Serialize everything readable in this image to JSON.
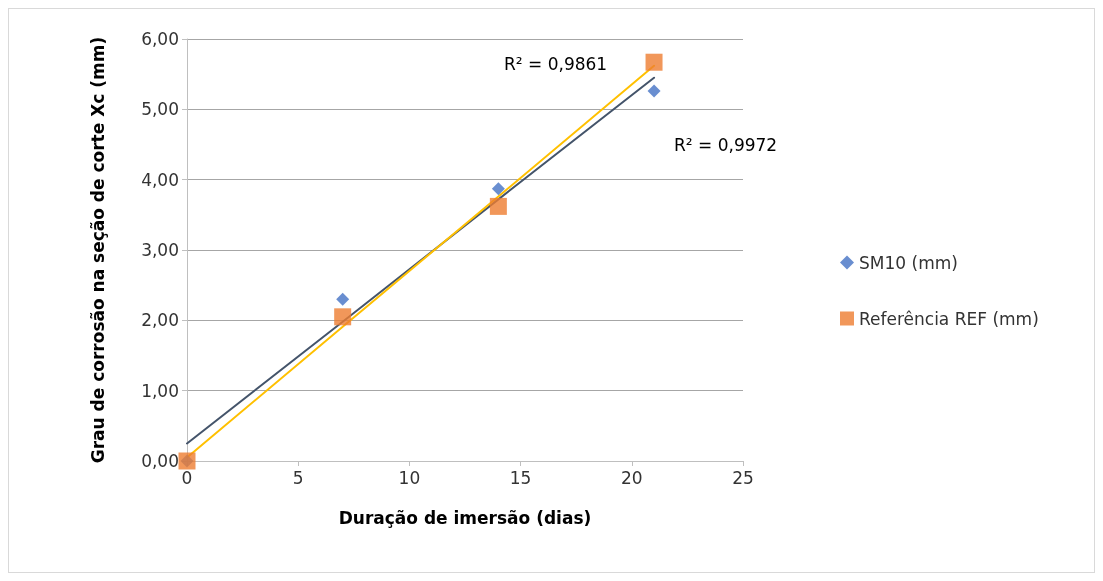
{
  "chart_data": {
    "type": "scatter",
    "xlabel": "Duração de imersão (dias)",
    "ylabel": "Grau de corrosão na seção de corte Xc (mm)",
    "x": [
      0,
      7,
      14,
      21
    ],
    "series": [
      {
        "name": "SM10 (mm)",
        "color": "#4472c4",
        "marker": "diamond",
        "values": [
          0,
          2.3,
          3.87,
          5.26
        ]
      },
      {
        "name": "Referência REF (mm)",
        "color": "#ed7d31",
        "marker": "square",
        "values": [
          0,
          2.05,
          3.62,
          5.67
        ]
      },
      {
        "type": "line",
        "color": "#44546a",
        "marker": "none",
        "values": [
          0.25,
          1.98,
          3.72,
          5.45
        ]
      },
      {
        "type": "line",
        "color": "#ffc000",
        "marker": "none",
        "values": [
          0.05,
          1.91,
          3.76,
          5.62
        ]
      }
    ],
    "annotations": [
      "R² = 0,9861",
      "R² = 0,9972"
    ],
    "xlim": [
      0,
      25
    ],
    "xticks": [
      0,
      5,
      10,
      15,
      20,
      25
    ],
    "ylim": [
      0,
      6
    ],
    "yticks": [
      {
        "value": 0,
        "label": "0,00"
      },
      {
        "value": 1,
        "label": "1,00"
      },
      {
        "value": 2,
        "label": "2,00"
      },
      {
        "value": 3,
        "label": "3,00"
      },
      {
        "value": 4,
        "label": "4,00"
      },
      {
        "value": 5,
        "label": "5,00"
      },
      {
        "value": 6,
        "label": "6,00"
      }
    ],
    "grid": "y",
    "legend": "right"
  }
}
